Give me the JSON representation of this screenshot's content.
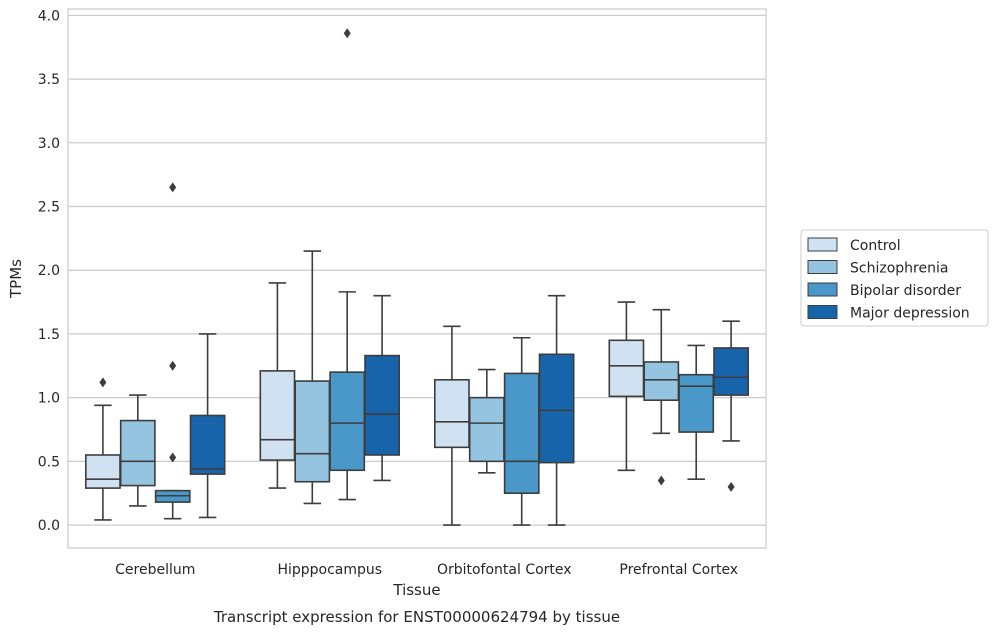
{
  "chart_data": {
    "type": "box",
    "xlabel": "Tissue",
    "ylabel": "TPMs",
    "caption": "Transcript expression for ENST00000624794 by tissue",
    "ylim": [
      -0.18,
      4.05
    ],
    "yticks": [
      "0.0",
      "0.5",
      "1.0",
      "1.5",
      "2.0",
      "2.5",
      "3.0",
      "3.5",
      "4.0"
    ],
    "grid": true,
    "legend_position": "right",
    "categories": [
      "Cerebellum",
      "Hipppocampus",
      "Orbitofontal Cortex",
      "Prefrontal Cortex"
    ],
    "series": [
      {
        "name": "Control",
        "color": "#d0e1f2",
        "boxes": [
          {
            "whislo": 0.04,
            "q1": 0.29,
            "med": 0.36,
            "q3": 0.55,
            "whishi": 0.94,
            "fliers": [
              1.12
            ]
          },
          {
            "whislo": 0.29,
            "q1": 0.51,
            "med": 0.67,
            "q3": 1.21,
            "whishi": 1.9,
            "fliers": []
          },
          {
            "whislo": 0.0,
            "q1": 0.61,
            "med": 0.81,
            "q3": 1.14,
            "whishi": 1.56,
            "fliers": []
          },
          {
            "whislo": 0.43,
            "q1": 1.01,
            "med": 1.25,
            "q3": 1.45,
            "whishi": 1.75,
            "fliers": []
          }
        ]
      },
      {
        "name": "Schizophrenia",
        "color": "#94c4df",
        "boxes": [
          {
            "whislo": 0.15,
            "q1": 0.31,
            "med": 0.5,
            "q3": 0.82,
            "whishi": 1.02,
            "fliers": []
          },
          {
            "whislo": 0.17,
            "q1": 0.34,
            "med": 0.56,
            "q3": 1.13,
            "whishi": 2.15,
            "fliers": []
          },
          {
            "whislo": 0.41,
            "q1": 0.5,
            "med": 0.8,
            "q3": 1.0,
            "whishi": 1.22,
            "fliers": []
          },
          {
            "whislo": 0.72,
            "q1": 0.98,
            "med": 1.14,
            "q3": 1.28,
            "whishi": 1.69,
            "fliers": [
              0.35
            ]
          }
        ]
      },
      {
        "name": "Bipolar disorder",
        "color": "#4a98c9",
        "boxes": [
          {
            "whislo": 0.05,
            "q1": 0.18,
            "med": 0.23,
            "q3": 0.27,
            "whishi": 0.27,
            "fliers": [
              2.65,
              1.25,
              0.53
            ]
          },
          {
            "whislo": 0.2,
            "q1": 0.43,
            "med": 0.8,
            "q3": 1.2,
            "whishi": 1.83,
            "fliers": [
              3.86
            ]
          },
          {
            "whislo": 0.0,
            "q1": 0.25,
            "med": 0.5,
            "q3": 1.19,
            "whishi": 1.47,
            "fliers": []
          },
          {
            "whislo": 0.36,
            "q1": 0.73,
            "med": 1.09,
            "q3": 1.18,
            "whishi": 1.41,
            "fliers": []
          }
        ]
      },
      {
        "name": "Major depression",
        "color": "#1764ab",
        "boxes": [
          {
            "whislo": 0.06,
            "q1": 0.4,
            "med": 0.44,
            "q3": 0.86,
            "whishi": 1.5,
            "fliers": []
          },
          {
            "whislo": 0.35,
            "q1": 0.55,
            "med": 0.87,
            "q3": 1.33,
            "whishi": 1.8,
            "fliers": []
          },
          {
            "whislo": 0.0,
            "q1": 0.49,
            "med": 0.9,
            "q3": 1.34,
            "whishi": 1.8,
            "fliers": []
          },
          {
            "whislo": 0.66,
            "q1": 1.02,
            "med": 1.16,
            "q3": 1.39,
            "whishi": 1.6,
            "fliers": [
              0.3
            ]
          }
        ]
      }
    ]
  }
}
